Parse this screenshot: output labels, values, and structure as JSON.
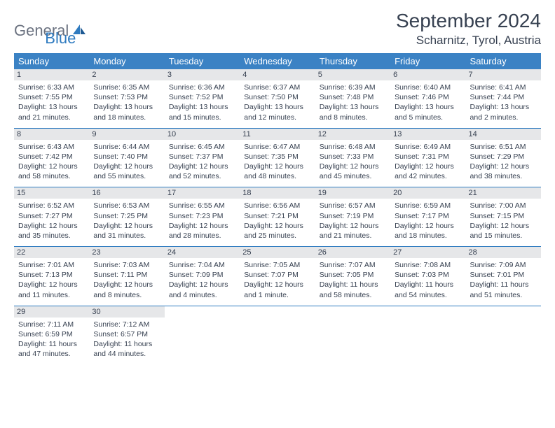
{
  "brand": {
    "part1": "General",
    "part2": "Blue"
  },
  "title": "September 2024",
  "location": "Scharnitz, Tyrol, Austria",
  "colors": {
    "header_bg": "#3b82c4",
    "border": "#2f7bc0",
    "daynum_bg": "#e6e7e9",
    "text": "#374151",
    "logo_gray": "#6b7280"
  },
  "weekdays": [
    "Sunday",
    "Monday",
    "Tuesday",
    "Wednesday",
    "Thursday",
    "Friday",
    "Saturday"
  ],
  "month_start_weekday": 0,
  "days": [
    {
      "n": 1,
      "sunrise": "6:33 AM",
      "sunset": "7:55 PM",
      "dl": "13 hours and 21 minutes."
    },
    {
      "n": 2,
      "sunrise": "6:35 AM",
      "sunset": "7:53 PM",
      "dl": "13 hours and 18 minutes."
    },
    {
      "n": 3,
      "sunrise": "6:36 AM",
      "sunset": "7:52 PM",
      "dl": "13 hours and 15 minutes."
    },
    {
      "n": 4,
      "sunrise": "6:37 AM",
      "sunset": "7:50 PM",
      "dl": "13 hours and 12 minutes."
    },
    {
      "n": 5,
      "sunrise": "6:39 AM",
      "sunset": "7:48 PM",
      "dl": "13 hours and 8 minutes."
    },
    {
      "n": 6,
      "sunrise": "6:40 AM",
      "sunset": "7:46 PM",
      "dl": "13 hours and 5 minutes."
    },
    {
      "n": 7,
      "sunrise": "6:41 AM",
      "sunset": "7:44 PM",
      "dl": "13 hours and 2 minutes."
    },
    {
      "n": 8,
      "sunrise": "6:43 AM",
      "sunset": "7:42 PM",
      "dl": "12 hours and 58 minutes."
    },
    {
      "n": 9,
      "sunrise": "6:44 AM",
      "sunset": "7:40 PM",
      "dl": "12 hours and 55 minutes."
    },
    {
      "n": 10,
      "sunrise": "6:45 AM",
      "sunset": "7:37 PM",
      "dl": "12 hours and 52 minutes."
    },
    {
      "n": 11,
      "sunrise": "6:47 AM",
      "sunset": "7:35 PM",
      "dl": "12 hours and 48 minutes."
    },
    {
      "n": 12,
      "sunrise": "6:48 AM",
      "sunset": "7:33 PM",
      "dl": "12 hours and 45 minutes."
    },
    {
      "n": 13,
      "sunrise": "6:49 AM",
      "sunset": "7:31 PM",
      "dl": "12 hours and 42 minutes."
    },
    {
      "n": 14,
      "sunrise": "6:51 AM",
      "sunset": "7:29 PM",
      "dl": "12 hours and 38 minutes."
    },
    {
      "n": 15,
      "sunrise": "6:52 AM",
      "sunset": "7:27 PM",
      "dl": "12 hours and 35 minutes."
    },
    {
      "n": 16,
      "sunrise": "6:53 AM",
      "sunset": "7:25 PM",
      "dl": "12 hours and 31 minutes."
    },
    {
      "n": 17,
      "sunrise": "6:55 AM",
      "sunset": "7:23 PM",
      "dl": "12 hours and 28 minutes."
    },
    {
      "n": 18,
      "sunrise": "6:56 AM",
      "sunset": "7:21 PM",
      "dl": "12 hours and 25 minutes."
    },
    {
      "n": 19,
      "sunrise": "6:57 AM",
      "sunset": "7:19 PM",
      "dl": "12 hours and 21 minutes."
    },
    {
      "n": 20,
      "sunrise": "6:59 AM",
      "sunset": "7:17 PM",
      "dl": "12 hours and 18 minutes."
    },
    {
      "n": 21,
      "sunrise": "7:00 AM",
      "sunset": "7:15 PM",
      "dl": "12 hours and 15 minutes."
    },
    {
      "n": 22,
      "sunrise": "7:01 AM",
      "sunset": "7:13 PM",
      "dl": "12 hours and 11 minutes."
    },
    {
      "n": 23,
      "sunrise": "7:03 AM",
      "sunset": "7:11 PM",
      "dl": "12 hours and 8 minutes."
    },
    {
      "n": 24,
      "sunrise": "7:04 AM",
      "sunset": "7:09 PM",
      "dl": "12 hours and 4 minutes."
    },
    {
      "n": 25,
      "sunrise": "7:05 AM",
      "sunset": "7:07 PM",
      "dl": "12 hours and 1 minute."
    },
    {
      "n": 26,
      "sunrise": "7:07 AM",
      "sunset": "7:05 PM",
      "dl": "11 hours and 58 minutes."
    },
    {
      "n": 27,
      "sunrise": "7:08 AM",
      "sunset": "7:03 PM",
      "dl": "11 hours and 54 minutes."
    },
    {
      "n": 28,
      "sunrise": "7:09 AM",
      "sunset": "7:01 PM",
      "dl": "11 hours and 51 minutes."
    },
    {
      "n": 29,
      "sunrise": "7:11 AM",
      "sunset": "6:59 PM",
      "dl": "11 hours and 47 minutes."
    },
    {
      "n": 30,
      "sunrise": "7:12 AM",
      "sunset": "6:57 PM",
      "dl": "11 hours and 44 minutes."
    }
  ],
  "labels": {
    "sunrise_prefix": "Sunrise: ",
    "sunset_prefix": "Sunset: ",
    "daylight_prefix": "Daylight: "
  }
}
